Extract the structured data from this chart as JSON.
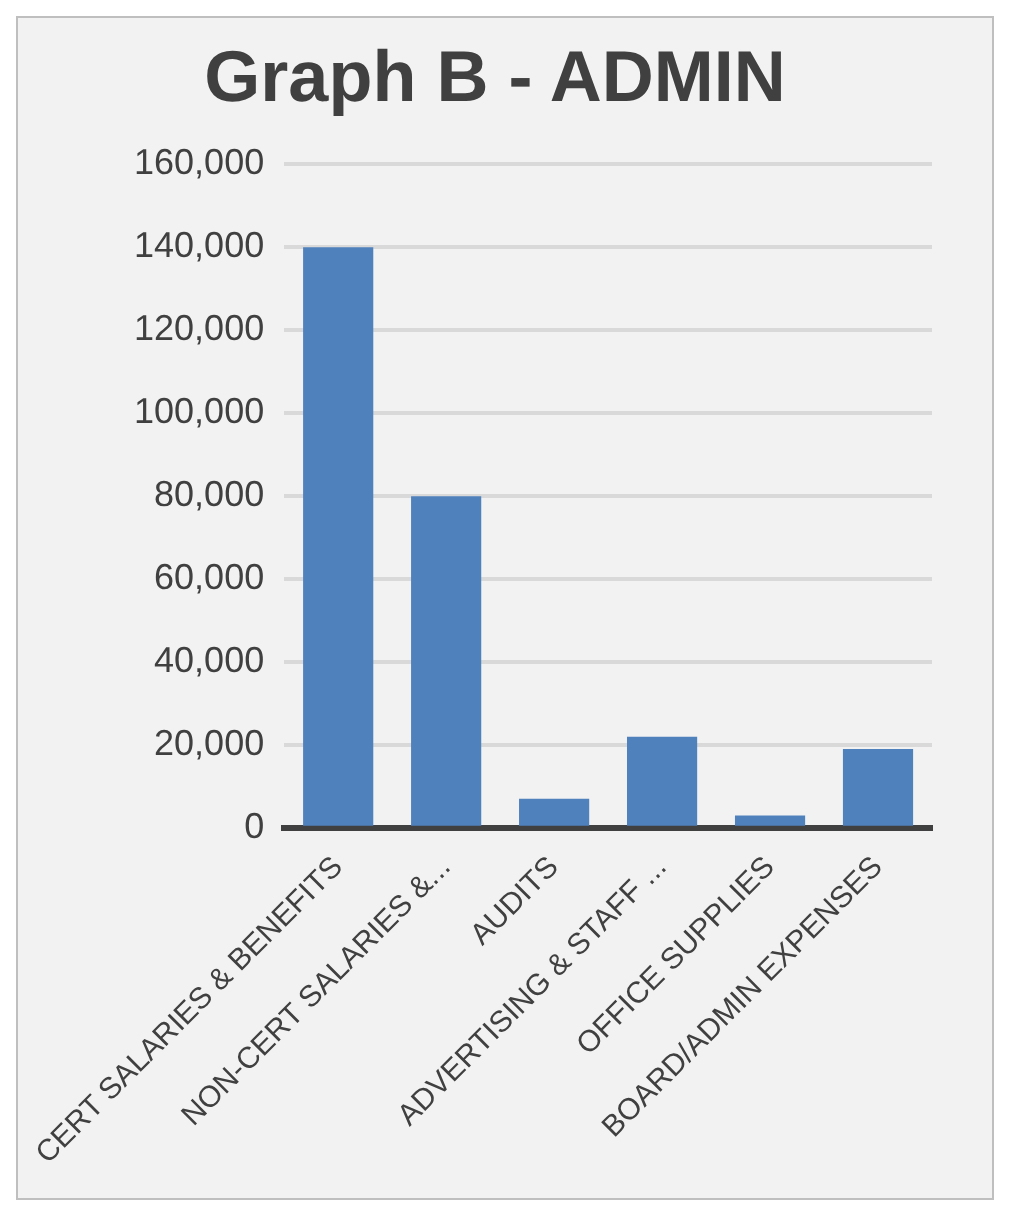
{
  "chart_data": {
    "type": "bar",
    "title": "Graph B - ADMIN",
    "categories": [
      "CERT SALARIES & BENEFITS",
      "NON-CERT SALARIES &...",
      "AUDITS",
      "ADVERTISING & STAFF ...",
      "OFFICE SUPPLIES",
      "BOARD/ADMIN EXPENSES"
    ],
    "values": [
      140000,
      80000,
      7000,
      22000,
      3000,
      19000
    ],
    "color": "#4f81bd",
    "ylim": [
      0,
      160000
    ],
    "yticks": [
      0,
      {
        "value": 20000,
        "label": "20,000"
      },
      {
        "value": 40000,
        "label": "40,000"
      },
      {
        "value": 60000,
        "label": "60,000"
      },
      {
        "value": 80000,
        "label": "80,000"
      },
      {
        "value": 100000,
        "label": "100,000"
      },
      {
        "value": 120000,
        "label": "120,000"
      },
      {
        "value": 140000,
        "label": "140,000"
      },
      {
        "value": 160000,
        "label": "160,000"
      }
    ],
    "grid": "y",
    "legend": false
  }
}
